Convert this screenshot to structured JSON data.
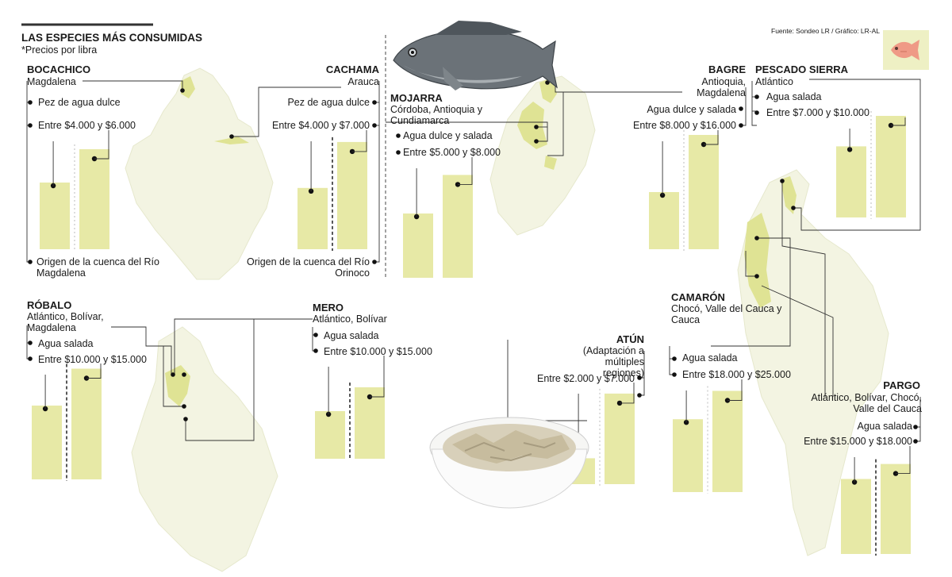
{
  "header": {
    "title": "LAS ESPECIES MÁS CONSUMIDAS",
    "subtitle": "*Precios por libra",
    "source": "Fuente: Sondeo LR / Gráfico: LR-AL"
  },
  "colors": {
    "bar": "#e7e9a6",
    "map": "#f2f3dc",
    "map_edge": "#e4e6c8",
    "highlight": "#dfe394",
    "line": "#333333"
  },
  "icons": {
    "fish": "fish-icon"
  },
  "chart_data": [
    {
      "type": "bar",
      "title": "BOCACHICO",
      "unit": "COP por libra",
      "regions": "Magdalena",
      "water": "Pez de agua dulce",
      "price_label": "Entre $4.000 y $6.000",
      "origin": "Origen de la cuenca del Río Magdalena",
      "values": [
        4000,
        6000
      ]
    },
    {
      "type": "bar",
      "title": "CACHAMA",
      "unit": "COP por libra",
      "regions": "Arauca",
      "water": "Pez de agua dulce",
      "price_label": "Entre $4.000 y $7.000",
      "origin": "Origen de la cuenca del Río Orinoco",
      "values": [
        4000,
        7000
      ]
    },
    {
      "type": "bar",
      "title": "MOJARRA",
      "unit": "COP por libra",
      "regions": "Córdoba, Antioquia y Cundiamarca",
      "water": "Agua dulce y salada",
      "price_label": "Entre $5.000 y $8.000",
      "values": [
        5000,
        8000
      ]
    },
    {
      "type": "bar",
      "title": "BAGRE",
      "unit": "COP por libra",
      "regions": "Antioquia, Magdalena",
      "water": "Agua dulce y salada",
      "price_label": "Entre $8.000 y $16.000",
      "values": [
        8000,
        16000
      ]
    },
    {
      "type": "bar",
      "title": "PESCADO SIERRA",
      "unit": "COP por libra",
      "regions": "Atlántico",
      "water": "Agua salada",
      "price_label": "Entre $7.000 y $10.000",
      "values": [
        7000,
        10000
      ]
    },
    {
      "type": "bar",
      "title": "RÓBALO",
      "unit": "COP por libra",
      "regions": "Atlántico, Bolívar, Magdalena",
      "water": "Agua salada",
      "price_label": "Entre $10.000 y $15.000",
      "values": [
        10000,
        15000
      ]
    },
    {
      "type": "bar",
      "title": "MERO",
      "unit": "COP por libra",
      "regions": "Atlántico, Bolívar",
      "water": "Agua salada",
      "price_label": "Entre $10.000 y $15.000",
      "values": [
        10000,
        15000
      ]
    },
    {
      "type": "bar",
      "title": "ATÚN",
      "unit": "COP por libra",
      "regions": "(Adaptación a múltiples regiones)",
      "price_label": "Entre $2.000 y $7.000",
      "values": [
        2000,
        7000
      ]
    },
    {
      "type": "bar",
      "title": "CAMARÓN",
      "unit": "COP por libra",
      "regions": "Chocó, Valle del Cauca y Cauca",
      "water": "Agua salada",
      "price_label": "Entre $18.000 y $25.000",
      "values": [
        18000,
        25000
      ]
    },
    {
      "type": "bar",
      "title": "PARGO",
      "unit": "COP por libra",
      "regions": "Atlántico, Bolívar, Chocó, Valle del Cauca",
      "water": "Agua salada",
      "price_label": "Entre $15.000 y $18.000",
      "values": [
        15000,
        18000
      ]
    }
  ]
}
